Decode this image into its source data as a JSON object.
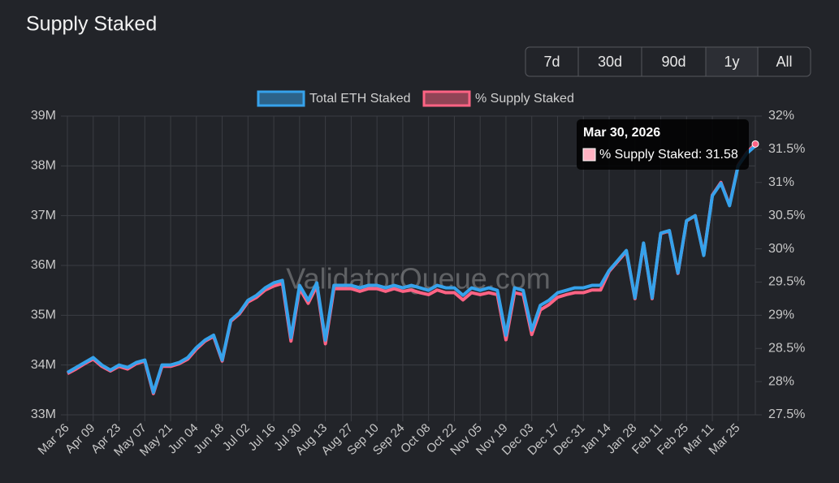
{
  "chart_data": {
    "type": "line",
    "title": "Supply Staked",
    "range_buttons": {
      "labels": [
        "7d",
        "30d",
        "90d",
        "1y",
        "All"
      ],
      "active": "1y"
    },
    "watermark": "ValidatorQueue.com",
    "legend": "top",
    "grid": true,
    "categories": [
      "Mar 26",
      null,
      null,
      "Apr 09",
      null,
      null,
      "Apr 23",
      null,
      null,
      "May 07",
      null,
      null,
      "May 21",
      null,
      null,
      "Jun 04",
      null,
      null,
      "Jun 18",
      null,
      null,
      "Jul 02",
      null,
      null,
      "Jul 16",
      null,
      null,
      "Jul 30",
      null,
      null,
      "Aug 13",
      null,
      null,
      "Aug 27",
      null,
      null,
      "Sep 10",
      null,
      null,
      "Sep 24",
      null,
      null,
      "Oct 08",
      null,
      null,
      "Oct 22",
      null,
      null,
      "Nov 05",
      null,
      null,
      "Nov 19",
      null,
      null,
      "Dec 03",
      null,
      null,
      "Dec 17",
      null,
      null,
      "Dec 31",
      null,
      null,
      "Jan 14",
      null,
      null,
      "Jan 28",
      null,
      null,
      "Feb 11",
      null,
      null,
      "Feb 25",
      null,
      null,
      "Mar 11",
      null,
      null,
      "Mar 25",
      null,
      null
    ],
    "series": [
      {
        "name": "Total ETH Staked",
        "color": "#36a2eb",
        "axis": "y",
        "values": [
          33850000,
          33950000,
          34050000,
          34150000,
          34000000,
          33900000,
          34000000,
          33950000,
          34050000,
          34100000,
          33450000,
          34000000,
          34000000,
          34050000,
          34150000,
          34350000,
          34500000,
          34600000,
          34100000,
          34900000,
          35050000,
          35300000,
          35400000,
          35550000,
          35650000,
          35700000,
          34550000,
          35600000,
          35300000,
          35650000,
          34500000,
          35600000,
          35600000,
          35600000,
          35550000,
          35600000,
          35600000,
          35550000,
          35600000,
          35550000,
          35600000,
          35550000,
          35500000,
          35600000,
          35550000,
          35550000,
          35400000,
          35550000,
          35500000,
          35550000,
          35500000,
          34600000,
          35550000,
          35500000,
          34700000,
          35200000,
          35300000,
          35450000,
          35500000,
          35550000,
          35550000,
          35600000,
          35600000,
          35900000,
          36100000,
          36300000,
          35350000,
          36450000,
          35350000,
          36650000,
          36700000,
          35850000,
          36900000,
          37000000,
          36200000,
          37400000,
          37650000,
          37200000,
          38000000,
          38250000,
          38400000
        ]
      },
      {
        "name": "% Supply Staked",
        "color": "#ff6384",
        "axis": "y2",
        "values": [
          28.12,
          28.19,
          28.27,
          28.34,
          28.23,
          28.16,
          28.23,
          28.19,
          28.27,
          28.31,
          27.82,
          28.23,
          28.23,
          28.27,
          28.34,
          28.49,
          28.61,
          28.68,
          28.31,
          28.91,
          29.02,
          29.2,
          29.27,
          29.38,
          29.44,
          29.48,
          28.61,
          29.4,
          29.18,
          29.44,
          28.57,
          29.4,
          29.4,
          29.4,
          29.36,
          29.4,
          29.4,
          29.36,
          29.4,
          29.36,
          29.38,
          29.34,
          29.31,
          29.38,
          29.34,
          29.34,
          29.23,
          29.34,
          29.31,
          29.34,
          29.31,
          28.63,
          29.34,
          29.31,
          28.71,
          29.08,
          29.16,
          29.27,
          29.31,
          29.34,
          29.34,
          29.38,
          29.38,
          29.66,
          29.81,
          29.96,
          29.25,
          30.08,
          29.25,
          30.23,
          30.27,
          29.63,
          30.42,
          30.5,
          29.91,
          30.81,
          31.0,
          30.66,
          31.26,
          31.45,
          31.58
        ]
      }
    ],
    "ylim": [
      33000000,
      39000000
    ],
    "yticks": [
      {
        "value": 33000000,
        "label": "33M"
      },
      {
        "value": 34000000,
        "label": "34M"
      },
      {
        "value": 35000000,
        "label": "35M"
      },
      {
        "value": 36000000,
        "label": "36M"
      },
      {
        "value": 37000000,
        "label": "37M"
      },
      {
        "value": 38000000,
        "label": "38M"
      },
      {
        "value": 39000000,
        "label": "39M"
      }
    ],
    "y2lim": [
      27.5,
      32
    ],
    "y2ticks": [
      {
        "value": 27.5,
        "label": "27.5%"
      },
      {
        "value": 28,
        "label": "28%"
      },
      {
        "value": 28.5,
        "label": "28.5%"
      },
      {
        "value": 29,
        "label": "29%"
      },
      {
        "value": 29.5,
        "label": "29.5%"
      },
      {
        "value": 30,
        "label": "30%"
      },
      {
        "value": 30.5,
        "label": "30.5%"
      },
      {
        "value": 31,
        "label": "31%"
      },
      {
        "value": 31.5,
        "label": "31.5%"
      },
      {
        "value": 32,
        "label": "32%"
      }
    ],
    "tooltip": {
      "title": "Mar 30, 2026",
      "text": "% Supply Staked: 31.58"
    }
  }
}
